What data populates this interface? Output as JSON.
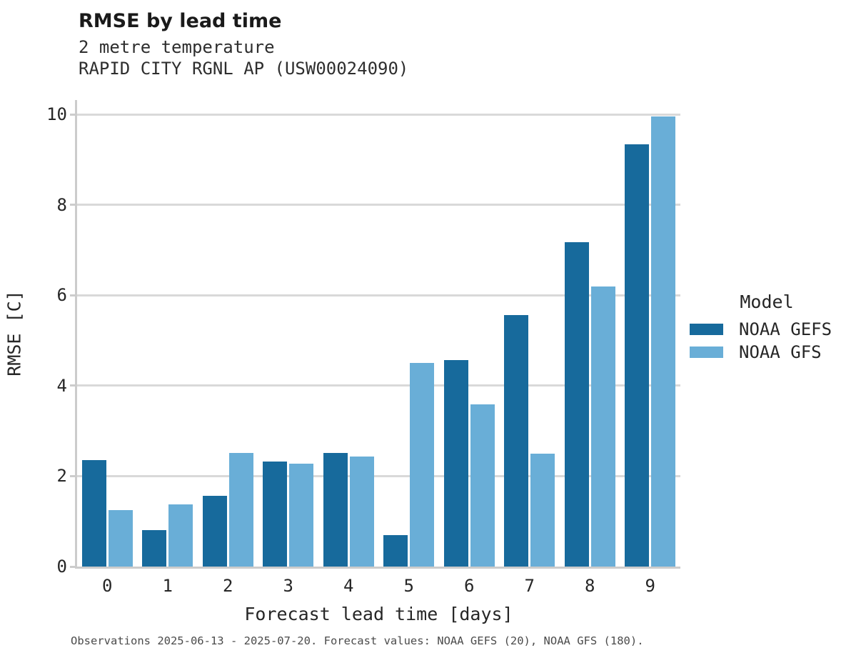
{
  "header": {
    "title": "RMSE by lead time",
    "subtitle_line1": "2 metre temperature",
    "subtitle_line2": "RAPID CITY RGNL AP (USW00024090)"
  },
  "chart_data": {
    "type": "bar",
    "title": "RMSE by lead time",
    "subtitle": "2 metre temperature — RAPID CITY RGNL AP (USW00024090)",
    "xlabel": "Forecast lead time [days]",
    "ylabel": "RMSE [C]",
    "categories": [
      "0",
      "1",
      "2",
      "3",
      "4",
      "5",
      "6",
      "7",
      "8",
      "9"
    ],
    "series": [
      {
        "name": "NOAA GEFS",
        "color": "#176a9c",
        "values": [
          2.36,
          0.81,
          1.57,
          2.33,
          2.51,
          0.7,
          4.57,
          5.57,
          7.17,
          9.34
        ]
      },
      {
        "name": "NOAA GFS",
        "color": "#69aed7",
        "values": [
          1.25,
          1.38,
          2.51,
          2.28,
          2.44,
          4.5,
          3.58,
          2.49,
          6.2,
          9.96
        ]
      }
    ],
    "ylim": [
      0,
      10.32
    ],
    "yticks": [
      0,
      2,
      4,
      6,
      8,
      10
    ],
    "grid": true,
    "legend_title": "Model",
    "legend_position": "right-of-plot"
  },
  "legend": {
    "title": "Model"
  },
  "footer": {
    "note": "Observations 2025-06-13 - 2025-07-20. Forecast values: NOAA GEFS (20), NOAA GFS (180)."
  },
  "colors": {
    "series_dark": "#176a9c",
    "series_light": "#69aed7",
    "gridline": "#d9d9d9",
    "spine": "#cccccc",
    "background": "#ffffff",
    "text": "#262626",
    "footer_text": "#4b4b4b"
  }
}
